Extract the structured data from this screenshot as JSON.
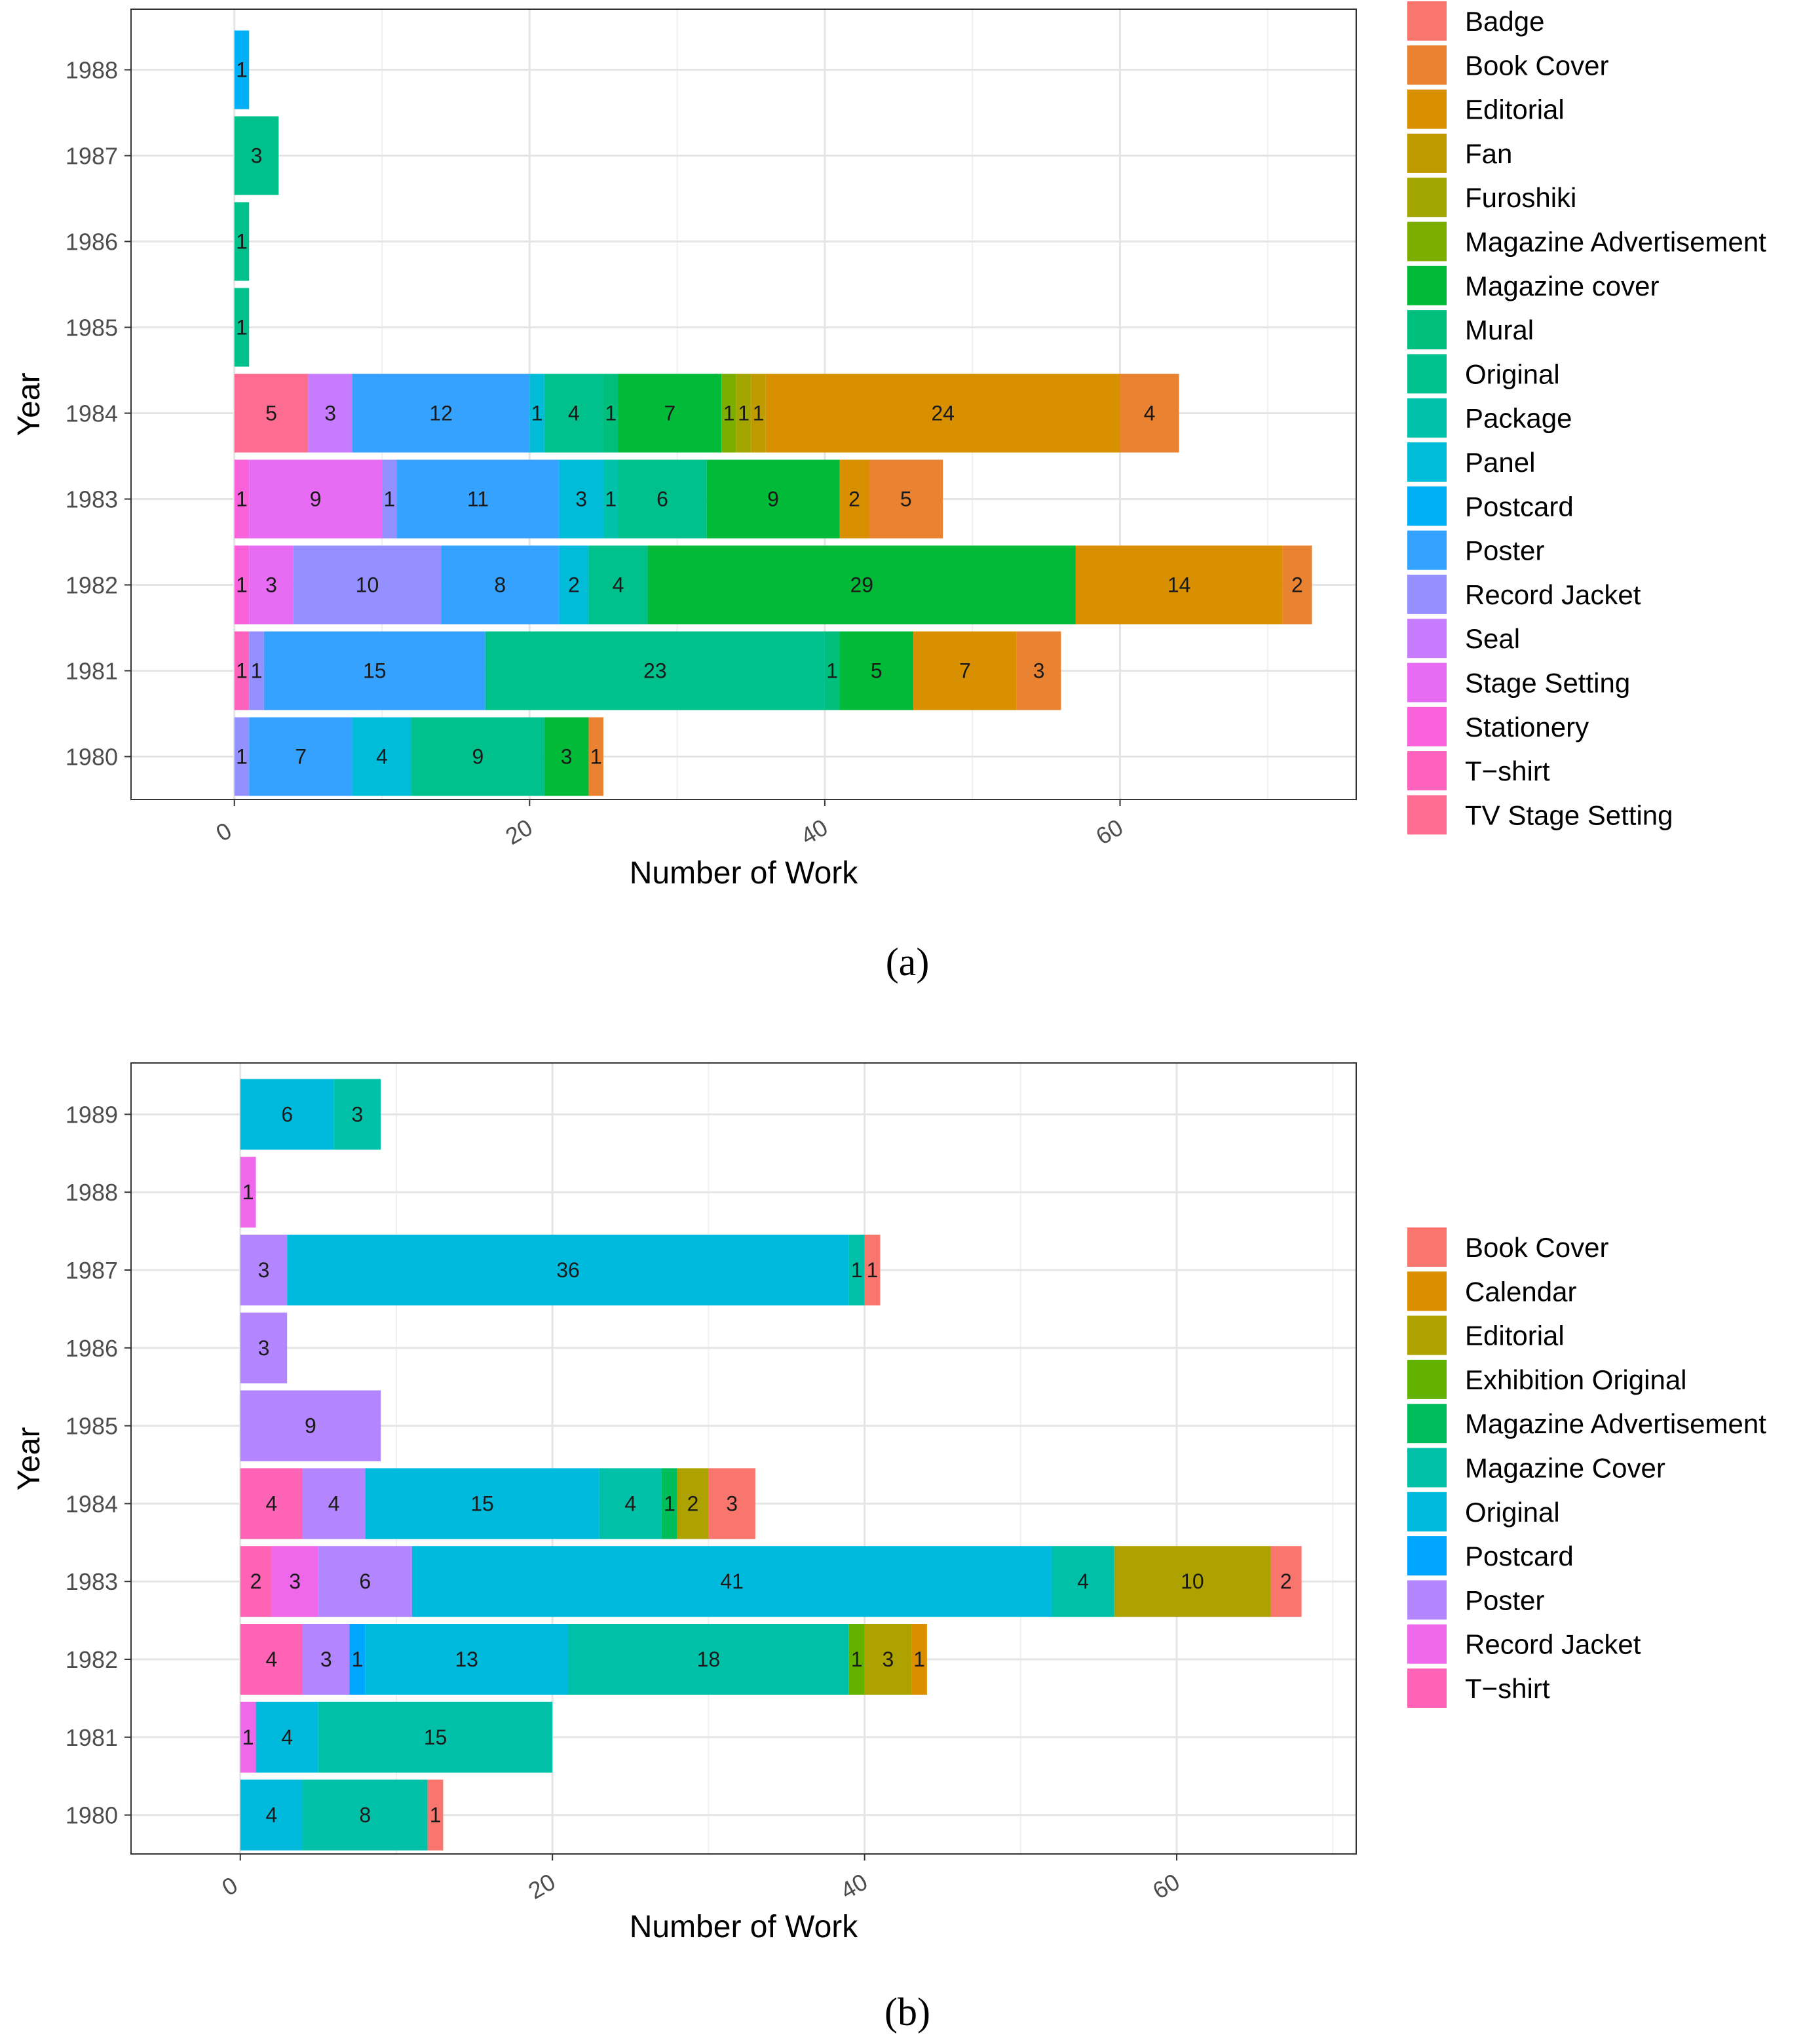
{
  "chart_data": [
    {
      "type": "bar",
      "orientation": "horizontal-stacked",
      "caption": "(a)",
      "xlabel": "Number of Work",
      "ylabel": "Year",
      "xlim": [
        -7,
        76
      ],
      "xticks": [
        0,
        20,
        40,
        60
      ],
      "grid": true,
      "legend_position": "right",
      "categories": [
        "1980",
        "1981",
        "1982",
        "1983",
        "1984",
        "1985",
        "1986",
        "1987",
        "1988"
      ],
      "series": [
        {
          "name": "Badge",
          "color": "#F8766D",
          "values": [
            0,
            0,
            0,
            0,
            0,
            0,
            0,
            0,
            0
          ]
        },
        {
          "name": "Book Cover",
          "color": "#EA8331",
          "values": [
            1,
            3,
            2,
            5,
            4,
            0,
            0,
            0,
            0
          ]
        },
        {
          "name": "Editorial",
          "color": "#D89000",
          "values": [
            0,
            7,
            14,
            2,
            24,
            0,
            0,
            0,
            0
          ]
        },
        {
          "name": "Fan",
          "color": "#C09B00",
          "values": [
            0,
            0,
            0,
            0,
            1,
            0,
            0,
            0,
            0
          ]
        },
        {
          "name": "Furoshiki",
          "color": "#A3A500",
          "values": [
            0,
            0,
            0,
            0,
            1,
            0,
            0,
            0,
            0
          ]
        },
        {
          "name": "Magazine Advertisement",
          "color": "#7CAE00",
          "values": [
            0,
            0,
            0,
            0,
            1,
            0,
            0,
            0,
            0
          ]
        },
        {
          "name": "Magazine cover",
          "color": "#00BA38",
          "values": [
            3,
            5,
            29,
            9,
            7,
            0,
            0,
            0,
            0
          ]
        },
        {
          "name": "Mural",
          "color": "#00BF7D",
          "values": [
            0,
            1,
            0,
            0,
            1,
            0,
            0,
            0,
            0
          ]
        },
        {
          "name": "Original",
          "color": "#00C08B",
          "values": [
            9,
            23,
            4,
            6,
            4,
            1,
            1,
            3,
            0
          ]
        },
        {
          "name": "Package",
          "color": "#00C1A9",
          "values": [
            0,
            0,
            0,
            1,
            0,
            0,
            0,
            0,
            0
          ]
        },
        {
          "name": "Panel",
          "color": "#00BCD8",
          "values": [
            4,
            0,
            2,
            3,
            1,
            0,
            0,
            0,
            0
          ]
        },
        {
          "name": "Postcard",
          "color": "#00B0F6",
          "values": [
            0,
            0,
            0,
            0,
            0,
            0,
            0,
            0,
            1
          ]
        },
        {
          "name": "Poster",
          "color": "#35A2FF",
          "values": [
            7,
            15,
            8,
            11,
            12,
            0,
            0,
            0,
            0
          ]
        },
        {
          "name": "Record Jacket",
          "color": "#9590FF",
          "values": [
            1,
            1,
            10,
            1,
            0,
            0,
            0,
            0,
            0
          ]
        },
        {
          "name": "Seal",
          "color": "#C77CFF",
          "values": [
            0,
            0,
            0,
            0,
            3,
            0,
            0,
            0,
            0
          ]
        },
        {
          "name": "Stage Setting",
          "color": "#E76BF3",
          "values": [
            0,
            0,
            3,
            9,
            0,
            0,
            0,
            0,
            0
          ]
        },
        {
          "name": "Stationery",
          "color": "#FA62DB",
          "values": [
            0,
            0,
            1,
            1,
            0,
            0,
            0,
            0,
            0
          ]
        },
        {
          "name": "T-shirt",
          "color": "#FF62BC",
          "values": [
            0,
            1,
            0,
            0,
            0,
            0,
            0,
            0,
            0
          ]
        },
        {
          "name": "TV Stage Setting",
          "color": "#FF6C91",
          "values": [
            0,
            0,
            0,
            0,
            5,
            0,
            0,
            0,
            0
          ]
        }
      ],
      "legend_labels": [
        "Badge",
        "Book Cover",
        "Editorial",
        "Fan",
        "Furoshiki",
        "Magazine Advertisement",
        "Magazine cover",
        "Mural",
        "Original",
        "Package",
        "Panel",
        "Postcard",
        "Poster",
        "Record Jacket",
        "Seal",
        "Stage Setting",
        "Stationery",
        "T−shirt",
        "TV Stage Setting"
      ]
    },
    {
      "type": "bar",
      "orientation": "horizontal-stacked",
      "caption": "(b)",
      "xlabel": "Number of Work",
      "ylabel": "Year",
      "xlim": [
        -7,
        71.5
      ],
      "xticks": [
        0,
        20,
        40,
        60
      ],
      "grid": true,
      "legend_position": "right",
      "categories": [
        "1980",
        "1981",
        "1982",
        "1983",
        "1984",
        "1985",
        "1986",
        "1987",
        "1988",
        "1989"
      ],
      "series": [
        {
          "name": "Book Cover",
          "color": "#F8766D",
          "values": [
            1,
            0,
            0,
            2,
            3,
            0,
            0,
            1,
            0,
            0
          ]
        },
        {
          "name": "Calendar",
          "color": "#DB8E00",
          "values": [
            0,
            0,
            1,
            0,
            0,
            0,
            0,
            0,
            0,
            0
          ]
        },
        {
          "name": "Editorial",
          "color": "#AEA200",
          "values": [
            0,
            0,
            3,
            10,
            2,
            0,
            0,
            0,
            0,
            0
          ]
        },
        {
          "name": "Exhibition Original",
          "color": "#64B200",
          "values": [
            0,
            0,
            1,
            0,
            0,
            0,
            0,
            0,
            0,
            0
          ]
        },
        {
          "name": "Magazine Advertisement",
          "color": "#00BD5C",
          "values": [
            0,
            0,
            0,
            0,
            1,
            0,
            0,
            0,
            0,
            0
          ]
        },
        {
          "name": "Magazine Cover",
          "color": "#00C1A7",
          "values": [
            8,
            15,
            18,
            4,
            4,
            0,
            0,
            1,
            0,
            3
          ]
        },
        {
          "name": "Original",
          "color": "#00BADE",
          "values": [
            4,
            4,
            13,
            41,
            15,
            0,
            0,
            36,
            0,
            6
          ]
        },
        {
          "name": "Postcard",
          "color": "#00A6FF",
          "values": [
            0,
            0,
            1,
            0,
            0,
            0,
            0,
            0,
            0,
            0
          ]
        },
        {
          "name": "Poster",
          "color": "#B385FF",
          "values": [
            0,
            0,
            3,
            6,
            4,
            9,
            3,
            3,
            0,
            0
          ]
        },
        {
          "name": "Record Jacket",
          "color": "#EF67EB",
          "values": [
            0,
            1,
            0,
            3,
            0,
            0,
            0,
            0,
            1,
            0
          ]
        },
        {
          "name": "T-shirt",
          "color": "#FF63B6",
          "values": [
            0,
            0,
            4,
            2,
            4,
            0,
            0,
            0,
            0,
            0
          ]
        }
      ],
      "legend_labels": [
        "Book Cover",
        "Calendar",
        "Editorial",
        "Exhibition Original",
        "Magazine Advertisement",
        "Magazine Cover",
        "Original",
        "Postcard",
        "Poster",
        "Record Jacket",
        "T−shirt"
      ]
    }
  ]
}
